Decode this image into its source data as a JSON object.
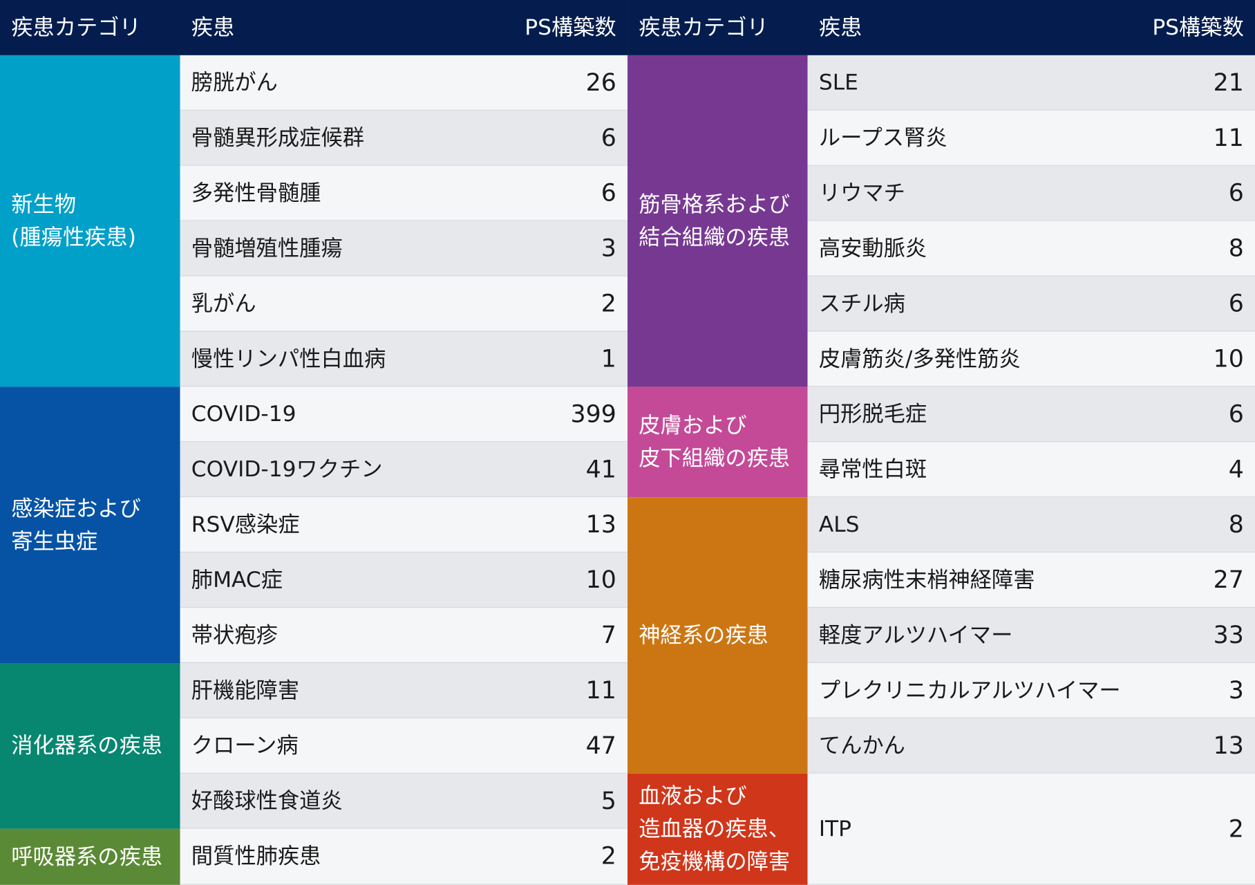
{
  "header": {
    "category": "疾患カテゴリ",
    "disease": "疾患",
    "count": "PS構築数"
  },
  "left": {
    "categories": [
      {
        "lines": [
          "新生物",
          "(腫瘍性疾患)"
        ],
        "color": "#00a0c9"
      },
      {
        "lines": [
          "感染症および",
          "寄生虫症"
        ],
        "color": "#0653a5"
      },
      {
        "lines": [
          "消化器系の疾患"
        ],
        "color": "#078670"
      },
      {
        "lines": [
          "呼吸器系の疾患"
        ],
        "color": "#5b8a36"
      }
    ],
    "rows": [
      {
        "name": "膀胱がん",
        "count": "26"
      },
      {
        "name": "骨髄異形成症候群",
        "count": "6"
      },
      {
        "name": "多発性骨髄腫",
        "count": "6"
      },
      {
        "name": "骨髄増殖性腫瘍",
        "count": "3"
      },
      {
        "name": "乳がん",
        "count": "2"
      },
      {
        "name": "慢性リンパ性白血病",
        "count": "1"
      },
      {
        "name": "COVID-19",
        "count": "399"
      },
      {
        "name": "COVID-19ワクチン",
        "count": "41"
      },
      {
        "name": "RSV感染症",
        "count": "13"
      },
      {
        "name": "肺MAC症",
        "count": "10"
      },
      {
        "name": "帯状疱疹",
        "count": "7"
      },
      {
        "name": "肝機能障害",
        "count": "11"
      },
      {
        "name": "クローン病",
        "count": "47"
      },
      {
        "name": "好酸球性食道炎",
        "count": "5"
      },
      {
        "name": "間質性肺疾患",
        "count": "2"
      }
    ]
  },
  "right": {
    "categories": [
      {
        "lines": [
          "筋骨格系および",
          "結合組織の疾患"
        ],
        "color": "#773892"
      },
      {
        "lines": [
          "皮膚および",
          "皮下組織の疾患"
        ],
        "color": "#c44a98"
      },
      {
        "lines": [
          "神経系の疾患"
        ],
        "color": "#cc7613"
      },
      {
        "lines": [
          "血液および",
          "造血器の疾患、",
          "免疫機構の障害"
        ],
        "color": "#d0361a"
      }
    ],
    "rows": [
      {
        "name": "SLE",
        "count": "21"
      },
      {
        "name": "ループス腎炎",
        "count": "11"
      },
      {
        "name": "リウマチ",
        "count": "6"
      },
      {
        "name": "高安動脈炎",
        "count": "8"
      },
      {
        "name": "スチル病",
        "count": "6"
      },
      {
        "name": "皮膚筋炎/多発性筋炎",
        "count": "10"
      },
      {
        "name": "円形脱毛症",
        "count": "6"
      },
      {
        "name": "尋常性白斑",
        "count": "4"
      },
      {
        "name": "ALS",
        "count": "8"
      },
      {
        "name": "糖尿病性末梢神経障害",
        "count": "27"
      },
      {
        "name": "軽度アルツハイマー",
        "count": "33"
      },
      {
        "name": "プレクリニカルアルツハイマー",
        "count": "3"
      },
      {
        "name": "てんかん",
        "count": "13"
      },
      {
        "name": "ITP",
        "count": "2"
      }
    ]
  }
}
